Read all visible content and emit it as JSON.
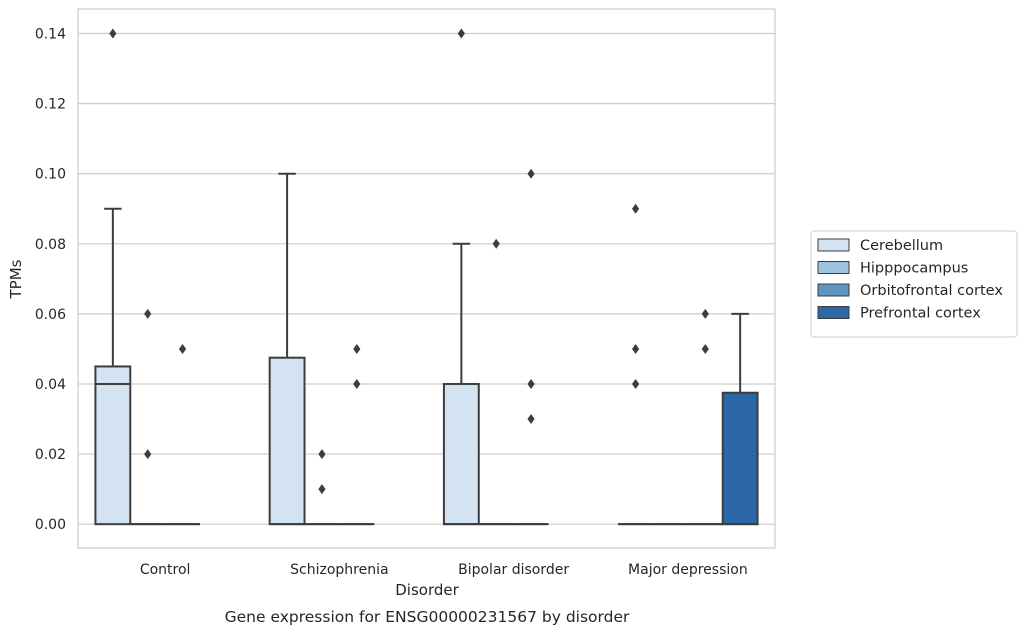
{
  "chart_data": {
    "type": "box",
    "title": "",
    "caption": "Gene expression for ENSG00000231567 by disorder",
    "xlabel": "Disorder",
    "ylabel": "TPMs",
    "ylim": [
      -0.0068,
      0.147
    ],
    "yticks": [
      "0.00",
      "0.02",
      "0.04",
      "0.06",
      "0.08",
      "0.10",
      "0.12",
      "0.14"
    ],
    "grid": "horizontal",
    "legend_position": "right",
    "categories": [
      "Control",
      "Schizophrenia",
      "Bipolar disorder",
      "Major depression"
    ],
    "series": [
      {
        "name": "Cerebellum",
        "color": "#d4e3f1",
        "boxes": [
          {
            "min": 0,
            "q1": 0,
            "median": 0.04,
            "q3": 0.045,
            "max": 0.09,
            "outliers": [
              0.14
            ]
          },
          {
            "min": 0,
            "q1": 0,
            "median": 0,
            "q3": 0.0475,
            "max": 0.1,
            "outliers": []
          },
          {
            "min": 0,
            "q1": 0,
            "median": 0,
            "q3": 0.04,
            "max": 0.08,
            "outliers": [
              0.14
            ]
          },
          {
            "min": 0,
            "q1": 0,
            "median": 0,
            "q3": 0,
            "max": 0,
            "outliers": [
              0.04,
              0.05,
              0.09
            ]
          }
        ]
      },
      {
        "name": "Hipppocampus",
        "color": "#9dc3dd",
        "boxes": [
          {
            "min": 0,
            "q1": 0,
            "median": 0,
            "q3": 0,
            "max": 0,
            "outliers": [
              0.02,
              0.06
            ]
          },
          {
            "min": 0,
            "q1": 0,
            "median": 0,
            "q3": 0,
            "max": 0,
            "outliers": [
              0.01,
              0.02
            ]
          },
          {
            "min": 0,
            "q1": 0,
            "median": 0,
            "q3": 0,
            "max": 0,
            "outliers": [
              0.08
            ]
          },
          {
            "min": 0,
            "q1": 0,
            "median": 0,
            "q3": 0,
            "max": 0,
            "outliers": []
          }
        ]
      },
      {
        "name": "Orbitofrontal cortex",
        "color": "#5b97c2",
        "boxes": [
          {
            "min": 0,
            "q1": 0,
            "median": 0,
            "q3": 0,
            "max": 0,
            "outliers": [
              0.05
            ]
          },
          {
            "min": 0,
            "q1": 0,
            "median": 0,
            "q3": 0,
            "max": 0,
            "outliers": [
              0.04,
              0.05
            ]
          },
          {
            "min": 0,
            "q1": 0,
            "median": 0,
            "q3": 0,
            "max": 0,
            "outliers": [
              0.03,
              0.04,
              0.1
            ]
          },
          {
            "min": 0,
            "q1": 0,
            "median": 0,
            "q3": 0,
            "max": 0,
            "outliers": [
              0.05,
              0.06
            ]
          }
        ]
      },
      {
        "name": "Prefrontal cortex",
        "color": "#2b68a5",
        "boxes": [
          null,
          null,
          null,
          {
            "min": 0,
            "q1": 0,
            "median": 0,
            "q3": 0.0375,
            "max": 0.06,
            "outliers": []
          }
        ]
      }
    ]
  }
}
